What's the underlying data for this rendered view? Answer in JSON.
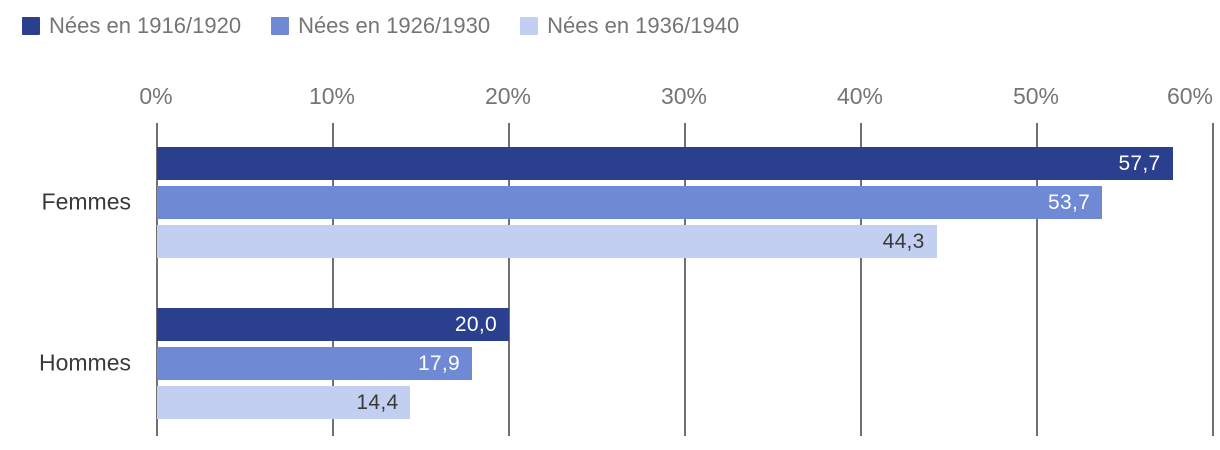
{
  "legend": {
    "items": [
      {
        "label": "Nées en 1916/1920"
      },
      {
        "label": "Nées en 1926/1930"
      },
      {
        "label": "Nées en 1936/1940"
      }
    ]
  },
  "chart_data": {
    "type": "bar",
    "orientation": "horizontal",
    "title": "",
    "categories": [
      "Femmes",
      "Hommes"
    ],
    "series": [
      {
        "name": "Nées en 1916/1920",
        "color": "#2a3f8d",
        "value_color": "#ffffff",
        "values": [
          57.7,
          20.0
        ],
        "display": [
          "57,7",
          "20,0"
        ]
      },
      {
        "name": "Nées en 1926/1930",
        "color": "#7089d4",
        "value_color": "#ffffff",
        "values": [
          53.7,
          17.9
        ],
        "display": [
          "53,7",
          "17,9"
        ]
      },
      {
        "name": "Nées en 1936/1940",
        "color": "#c2cff1",
        "value_color": "#3a3a3a",
        "values": [
          44.3,
          14.4
        ],
        "display": [
          "44,3",
          "14,4"
        ]
      }
    ],
    "x_axis": {
      "position": "top",
      "min": 0,
      "max": 60,
      "ticks": [
        0,
        10,
        20,
        30,
        40,
        50,
        60
      ],
      "tick_labels": [
        "0%",
        "10%",
        "20%",
        "30%",
        "40%",
        "50%",
        "60%"
      ]
    },
    "grid": true,
    "legend_position": "top",
    "colors": {
      "gridline": "#717171",
      "axis_label": "#757575",
      "category_label": "#3a3a3a",
      "legend_text": "#757575"
    }
  }
}
